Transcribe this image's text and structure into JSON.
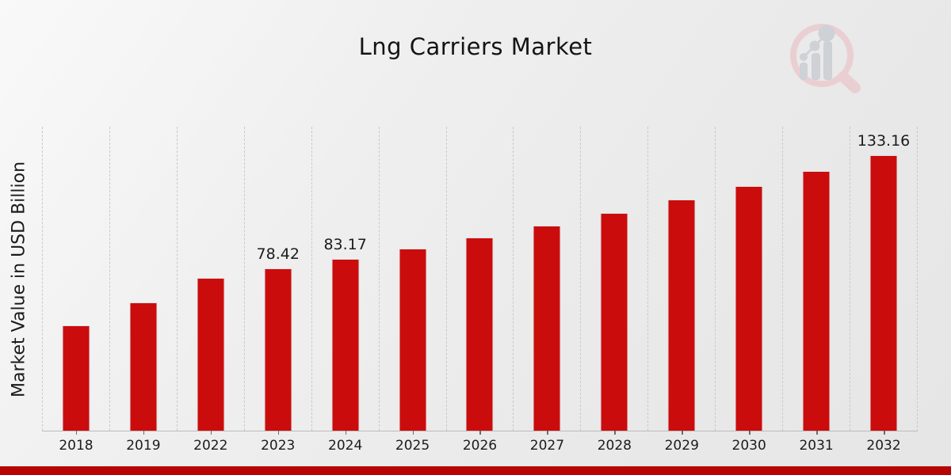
{
  "header": {
    "title": "Lng Carriers Market"
  },
  "chart_data": {
    "type": "bar",
    "title": "Lng Carriers Market",
    "xlabel": "",
    "ylabel": "Market Value in USD Billion",
    "unit": "USD Billion",
    "categories": [
      "2018",
      "2019",
      "2022",
      "2023",
      "2024",
      "2025",
      "2026",
      "2027",
      "2028",
      "2029",
      "2030",
      "2031",
      "2032"
    ],
    "values": [
      50.85,
      62.2,
      73.94,
      78.42,
      83.17,
      88.21,
      93.55,
      99.22,
      105.24,
      111.62,
      118.38,
      125.56,
      133.16
    ],
    "value_labels": [
      "",
      "",
      "",
      "78.42",
      "83.17",
      "",
      "",
      "",
      "",
      "",
      "",
      "",
      "133.16"
    ],
    "ylim": [
      0,
      147
    ],
    "grid": "vertical-dashed",
    "legend": "none",
    "bar_color": "#cb0c0c",
    "bar_edge_color": "#e2e2e2",
    "grid_color": "#c9c9c9",
    "axis_color": "#bcbcbc",
    "label_color": "#1c1c1c"
  },
  "watermark": {
    "name": "magnifier-growth-chart-logo",
    "ring_color": "#eacfd2",
    "element_color": "#ced1d6"
  },
  "footer": {
    "accent_bar_color": "#b80404"
  }
}
